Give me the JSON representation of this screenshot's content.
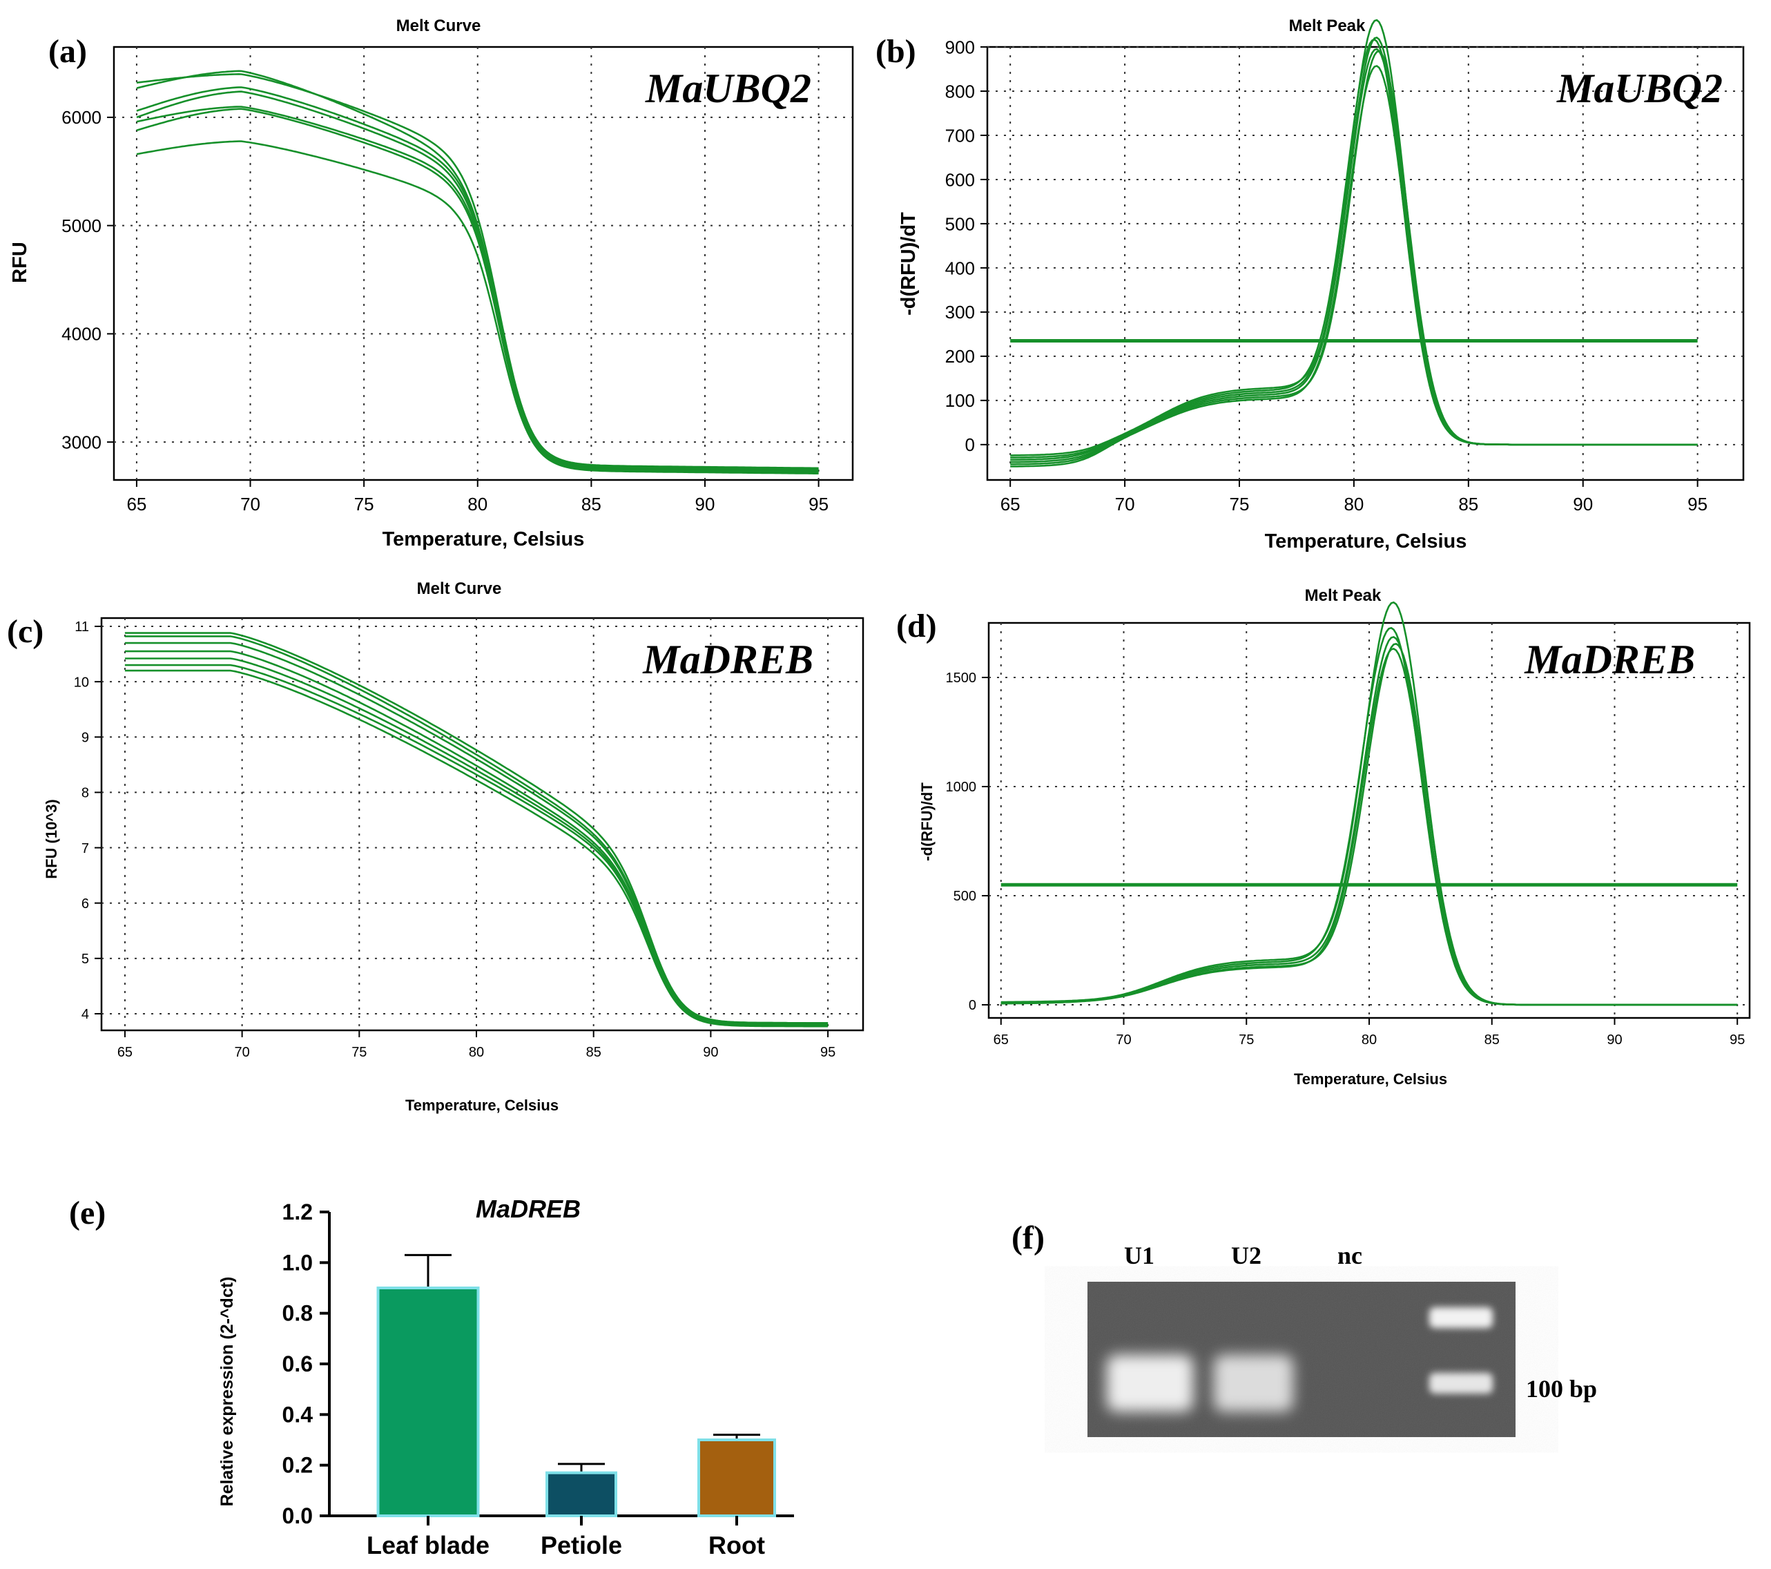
{
  "panels": {
    "a": {
      "letter": "(a)",
      "title": "Melt Curve",
      "gene": "MaUBQ2",
      "xlabel": "Temperature, Celsius",
      "ylabel": "RFU"
    },
    "b": {
      "letter": "(b)",
      "title": "Melt Peak",
      "gene": "MaUBQ2",
      "xlabel": "Temperature, Celsius",
      "ylabel": "-d(RFU)/dT"
    },
    "c": {
      "letter": "(c)",
      "title": "Melt Curve",
      "gene": "MaDREB",
      "xlabel": "Temperature, Celsius",
      "ylabel": "RFU (10^3)"
    },
    "d": {
      "letter": "(d)",
      "title": "Melt Peak",
      "gene": "MaDREB",
      "xlabel": "Temperature, Celsius",
      "ylabel": "-d(RFU)/dT"
    },
    "e": {
      "letter": "(e)",
      "title": "MaDREB",
      "ylabel": "Relative expression (2-^dct)"
    },
    "f": {
      "letter": "(f)",
      "lanes": [
        "U1",
        "U2",
        "nc"
      ],
      "marker_label": "100 bp"
    }
  },
  "colors": {
    "curve": "#16902a",
    "bar_leaf": "#0a9a5f",
    "bar_petiole": "#0d4f63",
    "bar_root": "#a4600f",
    "bar_edge": "#7fe0e8",
    "gel_bg": "#545454"
  },
  "chart_data": [
    {
      "id": "a",
      "type": "line",
      "title": "Melt Curve",
      "xlabel": "Temperature, Celsius",
      "ylabel": "RFU",
      "xlim": [
        64,
        96.5
      ],
      "ylim": [
        2650,
        6650
      ],
      "xticks": [
        65,
        70,
        75,
        80,
        85,
        90,
        95
      ],
      "yticks": [
        3000,
        4000,
        5000,
        6000
      ],
      "grid": true,
      "kind": "melt_curve",
      "tm": 81,
      "series": [
        {
          "start": 6320,
          "peak": 6400,
          "shoulder": 5720,
          "end": 2780
        },
        {
          "start": 6270,
          "peak": 6430,
          "shoulder": 5640,
          "end": 2790
        },
        {
          "start": 6060,
          "peak": 6280,
          "shoulder": 5600,
          "end": 2770
        },
        {
          "start": 6000,
          "peak": 6240,
          "shoulder": 5560,
          "end": 2760
        },
        {
          "start": 5960,
          "peak": 6100,
          "shoulder": 5500,
          "end": 2760
        },
        {
          "start": 5880,
          "peak": 6080,
          "shoulder": 5460,
          "end": 2750
        },
        {
          "start": 5660,
          "peak": 5780,
          "shoulder": 5260,
          "end": 2740
        }
      ]
    },
    {
      "id": "b",
      "type": "line",
      "title": "Melt Peak",
      "xlabel": "Temperature, Celsius",
      "ylabel": "-d(RFU)/dT",
      "xlim": [
        64,
        97
      ],
      "ylim": [
        -80,
        900
      ],
      "xticks": [
        65,
        70,
        75,
        80,
        85,
        90,
        95
      ],
      "yticks": [
        0,
        100,
        200,
        300,
        400,
        500,
        600,
        700,
        800,
        900
      ],
      "grid": true,
      "kind": "melt_peak",
      "threshold": 235,
      "series": [
        {
          "peak": 850,
          "tm": 81.0,
          "shoulder": 120,
          "base": -30
        },
        {
          "peak": 815,
          "tm": 81.0,
          "shoulder": 115,
          "base": -40
        },
        {
          "peak": 800,
          "tm": 80.9,
          "shoulder": 125,
          "base": -35
        },
        {
          "peak": 790,
          "tm": 81.1,
          "shoulder": 110,
          "base": -45
        },
        {
          "peak": 775,
          "tm": 81.0,
          "shoulder": 130,
          "base": -25
        },
        {
          "peak": 760,
          "tm": 81.0,
          "shoulder": 105,
          "base": -50
        }
      ]
    },
    {
      "id": "c",
      "type": "line",
      "title": "Melt Curve",
      "xlabel": "Temperature, Celsius",
      "ylabel": "RFU (10^3)",
      "xlim": [
        64,
        96.5
      ],
      "ylim": [
        3.7,
        11.15
      ],
      "xticks": [
        65,
        70,
        75,
        80,
        85,
        90,
        95
      ],
      "yticks": [
        4,
        5,
        6,
        7,
        8,
        9,
        10,
        11
      ],
      "grid": true,
      "kind": "melt_curve",
      "tm": 87.5,
      "series": [
        {
          "start": 10.88,
          "peak": 10.88,
          "shoulder": 7.3,
          "end": 3.84
        },
        {
          "start": 10.82,
          "peak": 10.82,
          "shoulder": 7.2,
          "end": 3.84
        },
        {
          "start": 10.7,
          "peak": 10.7,
          "shoulder": 7.15,
          "end": 3.82
        },
        {
          "start": 10.55,
          "peak": 10.55,
          "shoulder": 7.05,
          "end": 3.82
        },
        {
          "start": 10.42,
          "peak": 10.42,
          "shoulder": 7.0,
          "end": 3.8
        },
        {
          "start": 10.3,
          "peak": 10.3,
          "shoulder": 6.95,
          "end": 3.8
        },
        {
          "start": 10.2,
          "peak": 10.2,
          "shoulder": 6.85,
          "end": 3.78
        }
      ]
    },
    {
      "id": "d",
      "type": "line",
      "title": "Melt Peak",
      "xlabel": "Temperature, Celsius",
      "ylabel": "-d(RFU)/dT",
      "xlim": [
        64.5,
        95.5
      ],
      "ylim": [
        -60,
        1750
      ],
      "xticks": [
        65,
        70,
        75,
        80,
        85,
        90,
        95
      ],
      "yticks": [
        0,
        500,
        1000,
        1500
      ],
      "grid": true,
      "kind": "melt_peak",
      "threshold": 550,
      "series": [
        {
          "peak": 1650,
          "tm": 81.0,
          "shoulder": 210,
          "base": 10
        },
        {
          "peak": 1540,
          "tm": 80.9,
          "shoulder": 200,
          "base": 5
        },
        {
          "peak": 1510,
          "tm": 81.0,
          "shoulder": 190,
          "base": 8
        },
        {
          "peak": 1490,
          "tm": 81.1,
          "shoulder": 180,
          "base": 12
        },
        {
          "peak": 1470,
          "tm": 81.0,
          "shoulder": 175,
          "base": 6
        }
      ]
    },
    {
      "id": "e",
      "type": "bar",
      "title": "MaDREB",
      "ylabel": "Relative expression (2-^dct)",
      "categories": [
        "Leaf blade",
        "Petiole",
        "Root"
      ],
      "values": [
        0.9,
        0.17,
        0.3
      ],
      "errors": [
        0.13,
        0.035,
        0.02
      ],
      "ylim": [
        0,
        1.2
      ],
      "yticks": [
        "0.0",
        "0.2",
        "0.4",
        "0.6",
        "0.8",
        "1.0",
        "1.2"
      ],
      "grid": false
    }
  ]
}
